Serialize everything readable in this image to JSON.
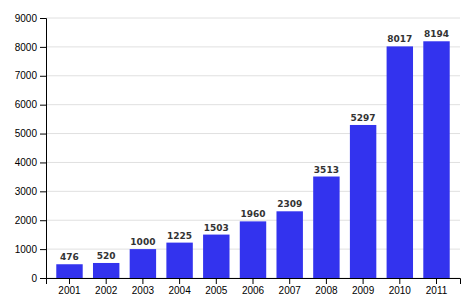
{
  "chart_data": {
    "type": "bar",
    "categories": [
      "2001",
      "2002",
      "2003",
      "2004",
      "2005",
      "2006",
      "2007",
      "2008",
      "2009",
      "2010",
      "2011"
    ],
    "values": [
      476,
      520,
      1000,
      1225,
      1503,
      1960,
      2309,
      3513,
      5297,
      8017,
      8194
    ],
    "color": "#3333ee",
    "ylim": [
      0,
      9000
    ],
    "yticks": [
      0,
      1000,
      2000,
      3000,
      4000,
      5000,
      6000,
      7000,
      8000,
      9000
    ],
    "grid": true,
    "data_labels": true
  }
}
